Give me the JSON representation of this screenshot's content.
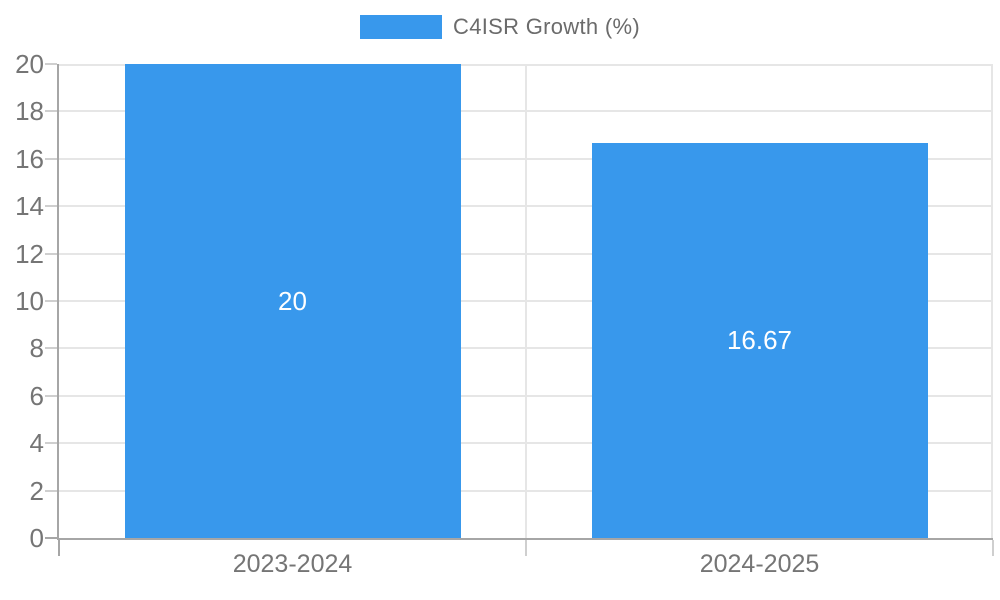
{
  "chart_data": {
    "type": "bar",
    "categories": [
      "2023-2024",
      "2024-2025"
    ],
    "series": [
      {
        "name": "C4ISR Growth (%)",
        "values": [
          20,
          16.67
        ]
      }
    ],
    "value_labels": [
      "20",
      "16.67"
    ],
    "legend": {
      "label": "C4ISR Growth (%)",
      "position": "top-center"
    },
    "title": "",
    "xlabel": "",
    "ylabel": "",
    "ylim": [
      0,
      20
    ],
    "yticks": [
      0,
      2,
      4,
      6,
      8,
      10,
      12,
      14,
      16,
      18,
      20
    ],
    "grid": true,
    "colors": {
      "bar": "#3898ec",
      "grid": "#e6e6e6",
      "axis": "#a6a6a6",
      "tick": "#cfcfcf",
      "tick_text": "#757575",
      "legend_text": "#6b6b6b",
      "bar_label": "#ffffff",
      "background": "#ffffff"
    }
  }
}
